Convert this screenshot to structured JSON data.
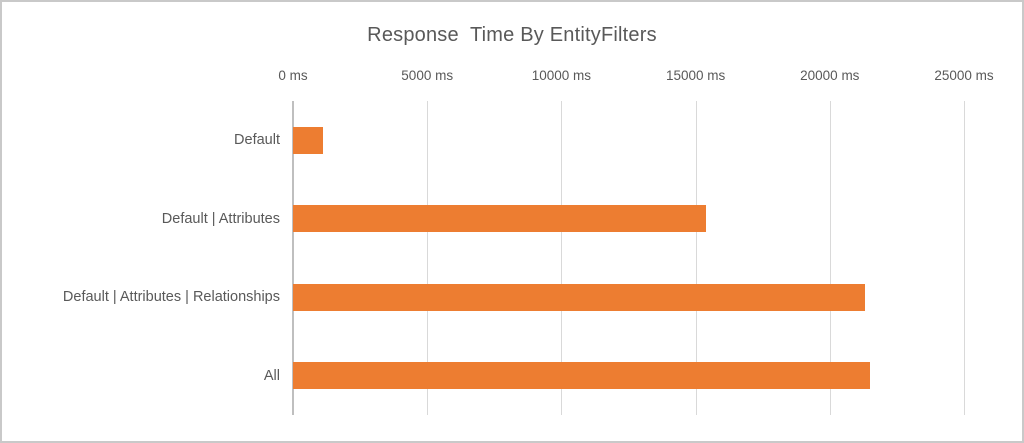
{
  "window": {
    "background": "#ffffff",
    "border_color": "#c9c9c9"
  },
  "chart_data": {
    "type": "bar",
    "orientation": "horizontal",
    "title": "Response  Time By EntityFilters",
    "categories": [
      "Default",
      "Default | Attributes",
      "Default | Attributes | Relationships",
      "All"
    ],
    "values": [
      1100,
      15400,
      21300,
      21500
    ],
    "unit": "ms",
    "xlabel": "",
    "ylabel": "",
    "xlim": [
      0,
      25000
    ],
    "x_tick_values": [
      0,
      5000,
      10000,
      15000,
      20000,
      25000
    ],
    "x_ticks": [
      "0 ms",
      "5000 ms",
      "10000 ms",
      "15000 ms",
      "20000 ms",
      "25000 ms"
    ],
    "tick_label_position": "top",
    "legend": "none",
    "grid": "vertical",
    "bar_color": "#ED7D31",
    "gridline_color": "#D9D9D9",
    "axis_line_color": "#BFBFBF",
    "text_color": "#595959"
  }
}
